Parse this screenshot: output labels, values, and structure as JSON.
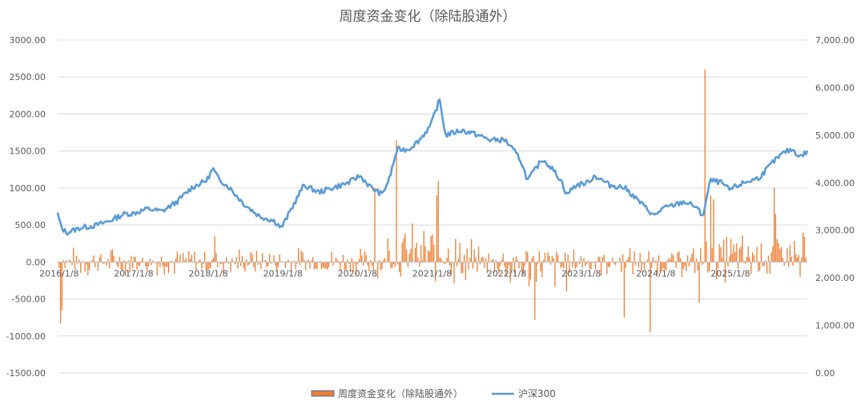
{
  "chart_data": {
    "type": "bar+line",
    "title": "周度资金变化（除陆股通外）",
    "x_ticks": [
      "2016/1/8",
      "2017/1/8",
      "2018/1/8",
      "2019/1/8",
      "2020/1/8",
      "2021/1/8",
      "2022/1/8",
      "2023/1/8",
      "2024/1/8",
      "2025/1/8"
    ],
    "x_range": [
      "2016/1/8",
      "2025/6/30"
    ],
    "y_left": {
      "ticks": [
        "3000.00",
        "2500.00",
        "2000.00",
        "1500.00",
        "1000.00",
        "500.00",
        "0.00",
        "-500.00",
        "-1000.00",
        "-1500.00"
      ],
      "ylim": [
        -1500,
        3000
      ]
    },
    "y_right": {
      "ticks": [
        "7,000.00",
        "6,000.00",
        "5,000.00",
        "4,000.00",
        "3,000.00",
        "2,000.00",
        "1,000.00",
        "0.00"
      ],
      "ylim": [
        0,
        7000
      ]
    },
    "grid": true,
    "legend_position": "bottom",
    "colors": {
      "bar": "#ED7D31",
      "line": "#5B9BD5",
      "grid": "#D9D9D9",
      "text": "#595959"
    },
    "line_keypoints": [
      [
        2016.0,
        3350
      ],
      [
        2016.05,
        3050
      ],
      [
        2016.12,
        2950
      ],
      [
        2016.3,
        3050
      ],
      [
        2016.5,
        3100
      ],
      [
        2016.7,
        3200
      ],
      [
        2016.9,
        3350
      ],
      [
        2017.0,
        3350
      ],
      [
        2017.2,
        3450
      ],
      [
        2017.4,
        3400
      ],
      [
        2017.6,
        3600
      ],
      [
        2017.8,
        3900
      ],
      [
        2018.0,
        4050
      ],
      [
        2018.08,
        4300
      ],
      [
        2018.15,
        4100
      ],
      [
        2018.3,
        3900
      ],
      [
        2018.5,
        3550
      ],
      [
        2018.7,
        3300
      ],
      [
        2018.9,
        3200
      ],
      [
        2019.0,
        3050
      ],
      [
        2019.15,
        3500
      ],
      [
        2019.3,
        3950
      ],
      [
        2019.5,
        3800
      ],
      [
        2019.7,
        3900
      ],
      [
        2019.9,
        4000
      ],
      [
        2020.05,
        4150
      ],
      [
        2020.2,
        3900
      ],
      [
        2020.35,
        3750
      ],
      [
        2020.45,
        4100
      ],
      [
        2020.55,
        4700
      ],
      [
        2020.7,
        4700
      ],
      [
        2020.85,
        4900
      ],
      [
        2021.0,
        5200
      ],
      [
        2021.12,
        5750
      ],
      [
        2021.2,
        5000
      ],
      [
        2021.4,
        5100
      ],
      [
        2021.55,
        5050
      ],
      [
        2021.8,
        4900
      ],
      [
        2022.0,
        4900
      ],
      [
        2022.2,
        4500
      ],
      [
        2022.3,
        4050
      ],
      [
        2022.5,
        4500
      ],
      [
        2022.6,
        4350
      ],
      [
        2022.75,
        4050
      ],
      [
        2022.82,
        3750
      ],
      [
        2022.95,
        3950
      ],
      [
        2023.1,
        4000
      ],
      [
        2023.2,
        4150
      ],
      [
        2023.4,
        3950
      ],
      [
        2023.6,
        3900
      ],
      [
        2023.8,
        3600
      ],
      [
        2024.0,
        3300
      ],
      [
        2024.1,
        3450
      ],
      [
        2024.2,
        3500
      ],
      [
        2024.4,
        3600
      ],
      [
        2024.55,
        3500
      ],
      [
        2024.65,
        3300
      ],
      [
        2024.75,
        4050
      ],
      [
        2024.9,
        4000
      ],
      [
        2025.0,
        3850
      ],
      [
        2025.2,
        4000
      ],
      [
        2025.4,
        4100
      ],
      [
        2025.6,
        4450
      ],
      [
        2025.75,
        4650
      ],
      [
        2025.85,
        4700
      ],
      [
        2025.95,
        4550
      ],
      [
        2026.05,
        4650
      ]
    ],
    "bar_highlights": [
      [
        2016.03,
        -830
      ],
      [
        2016.05,
        -650
      ],
      [
        2018.1,
        350
      ],
      [
        2020.25,
        1000
      ],
      [
        2020.32,
        700
      ],
      [
        2020.55,
        1650
      ],
      [
        2021.08,
        900
      ],
      [
        2021.1,
        1100
      ],
      [
        2022.4,
        -780
      ],
      [
        2023.6,
        -750
      ],
      [
        2023.95,
        -950
      ],
      [
        2024.6,
        -550
      ],
      [
        2024.68,
        2600
      ],
      [
        2024.75,
        900
      ],
      [
        2024.8,
        850
      ],
      [
        2025.6,
        1000
      ],
      [
        2025.62,
        650
      ],
      [
        2025.95,
        -200
      ],
      [
        2026.0,
        400
      ]
    ]
  },
  "legend": {
    "items": [
      {
        "label": "周度资金变化（除陆股通外）",
        "swatch": "bar",
        "color": "#ED7D31"
      },
      {
        "label": "沪深300",
        "swatch": "line",
        "color": "#5B9BD5"
      }
    ]
  }
}
